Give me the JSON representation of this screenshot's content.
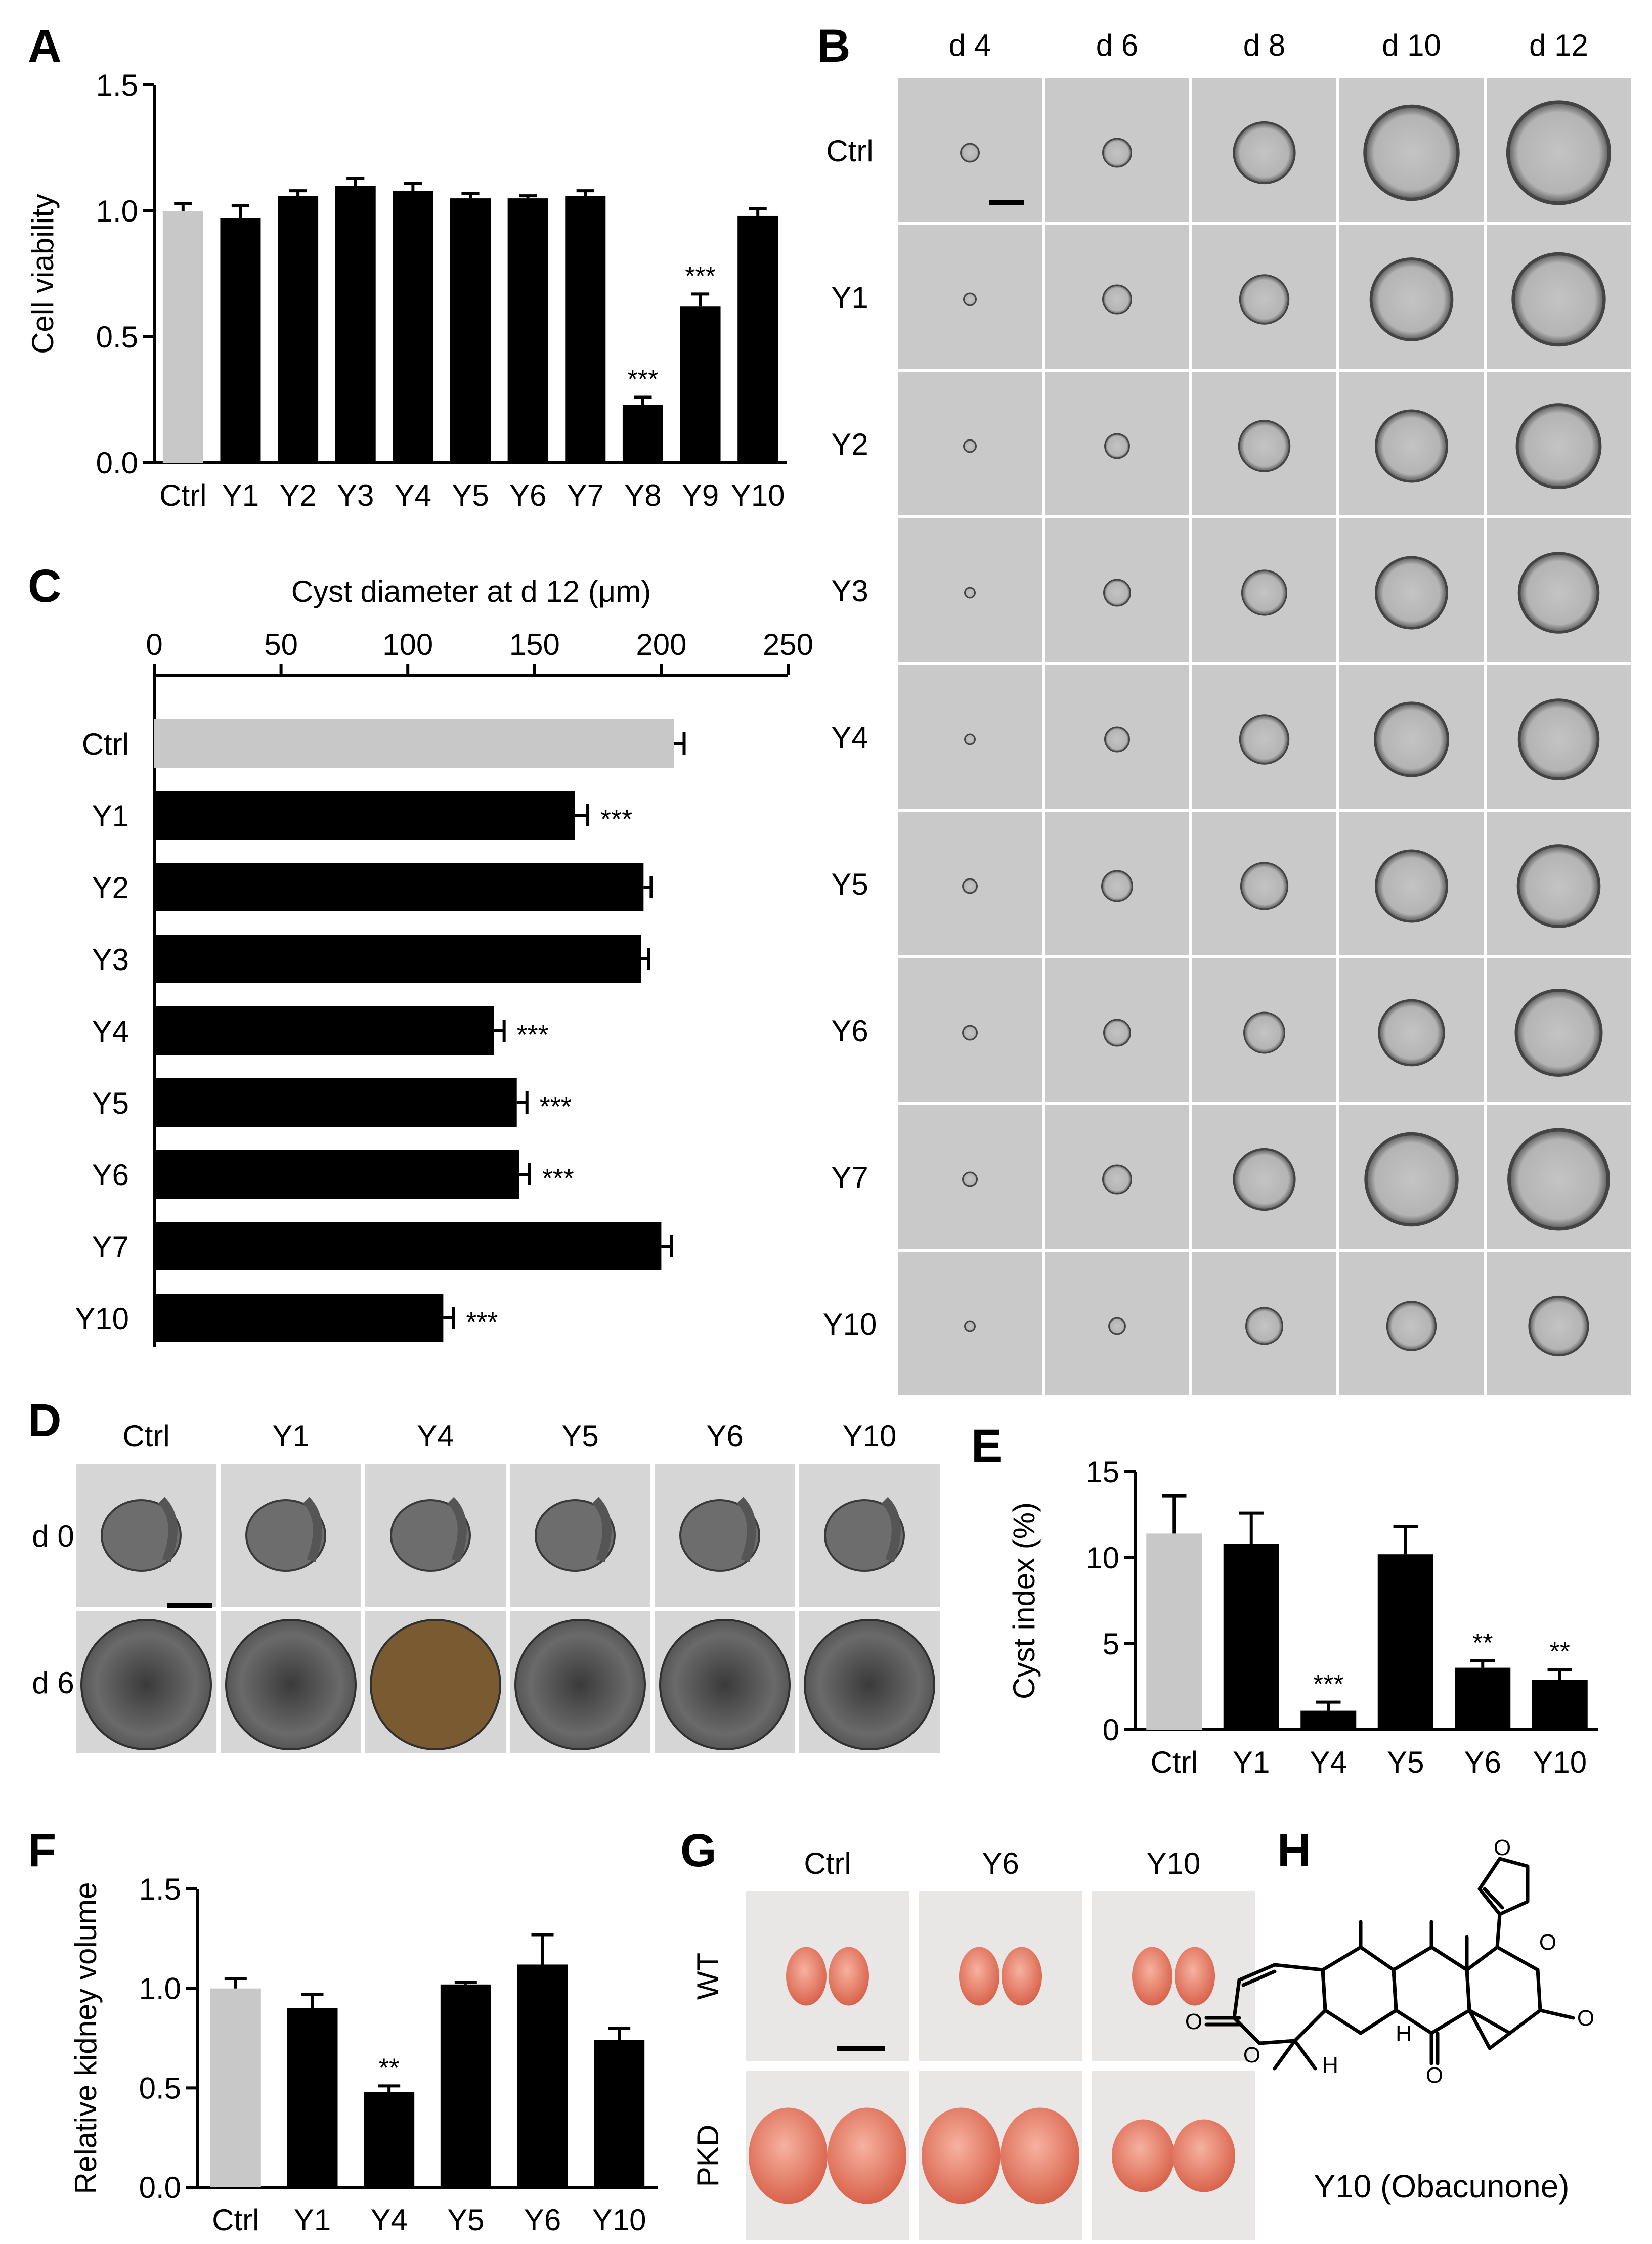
{
  "colors": {
    "ctrl_bar": "#c8c8c8",
    "treated_bar": "#000000",
    "kidney_wt": "#e4745e",
    "kidney_pkd": "#ea8f78",
    "micro_bg": "#c9c9c9",
    "cyst_edge": "#444444"
  },
  "panel_letters": [
    "A",
    "B",
    "C",
    "D",
    "E",
    "F",
    "G",
    "H"
  ],
  "chart_data": [
    {
      "panel": "A",
      "type": "bar",
      "categories": [
        "Ctrl",
        "Y1",
        "Y2",
        "Y3",
        "Y4",
        "Y5",
        "Y6",
        "Y7",
        "Y8",
        "Y9",
        "Y10"
      ],
      "values": [
        1.0,
        0.97,
        1.06,
        1.1,
        1.08,
        1.05,
        1.05,
        1.06,
        0.23,
        0.62,
        0.98
      ],
      "errors": [
        0.03,
        0.05,
        0.02,
        0.03,
        0.03,
        0.02,
        0.01,
        0.02,
        0.03,
        0.05,
        0.03
      ],
      "significance": [
        "",
        "",
        "",
        "",
        "",
        "",
        "",
        "",
        "***",
        "***",
        ""
      ],
      "ylabel": "Cell viability",
      "ylim": [
        0,
        1.5
      ],
      "yticks": [
        "0.0",
        "0.5",
        "1.0",
        "1.5"
      ],
      "ytick_values": [
        0,
        0.5,
        1.0,
        1.5
      ]
    },
    {
      "panel": "C",
      "type": "bar",
      "orientation": "horizontal",
      "categories": [
        "Ctrl",
        "Y1",
        "Y2",
        "Y3",
        "Y4",
        "Y5",
        "Y6",
        "Y7",
        "Y10"
      ],
      "values": [
        205,
        166,
        193,
        192,
        134,
        143,
        144,
        200,
        114
      ],
      "errors": [
        4,
        5,
        3,
        3,
        4,
        4,
        4,
        4,
        4
      ],
      "significance": [
        "",
        "***",
        "",
        "",
        "***",
        "***",
        "***",
        "",
        "***"
      ],
      "xlabel": "Cyst diameter at d 12 (μm)",
      "xlim": [
        0,
        250
      ],
      "xticks": [
        "0",
        "50",
        "100",
        "150",
        "200",
        "250"
      ],
      "xtick_values": [
        0,
        50,
        100,
        150,
        200,
        250
      ]
    },
    {
      "panel": "E",
      "type": "bar",
      "categories": [
        "Ctrl",
        "Y1",
        "Y4",
        "Y5",
        "Y6",
        "Y10"
      ],
      "values": [
        11.4,
        10.8,
        1.1,
        10.2,
        3.6,
        2.9
      ],
      "errors": [
        2.2,
        1.8,
        0.5,
        1.6,
        0.4,
        0.6
      ],
      "significance": [
        "",
        "",
        "***",
        "",
        "**",
        "**"
      ],
      "ylabel": "Cyst index (%)",
      "ylim": [
        0,
        15
      ],
      "yticks": [
        "0",
        "5",
        "10",
        "15"
      ],
      "ytick_values": [
        0,
        5,
        10,
        15
      ]
    },
    {
      "panel": "F",
      "type": "bar",
      "categories": [
        "Ctrl",
        "Y1",
        "Y4",
        "Y5",
        "Y6",
        "Y10"
      ],
      "values": [
        1.0,
        0.9,
        0.48,
        1.02,
        1.12,
        0.74
      ],
      "errors": [
        0.05,
        0.07,
        0.03,
        0.01,
        0.15,
        0.06
      ],
      "significance": [
        "",
        "",
        "**",
        "",
        "",
        ""
      ],
      "ylabel": "Relative kidney volume",
      "ylim": [
        0,
        1.5
      ],
      "yticks": [
        "0.0",
        "0.5",
        "1.0",
        "1.5"
      ],
      "ytick_values": [
        0,
        0.5,
        1.0,
        1.5
      ]
    }
  ],
  "panel_b": {
    "columns": [
      "d 4",
      "d 6",
      "d 8",
      "d 10",
      "d 12"
    ],
    "rows": [
      "Ctrl",
      "Y1",
      "Y2",
      "Y3",
      "Y4",
      "Y5",
      "Y6",
      "Y7",
      "Y10"
    ]
  },
  "panel_d": {
    "columns": [
      "Ctrl",
      "Y1",
      "Y4",
      "Y5",
      "Y6",
      "Y10"
    ],
    "rows": [
      "d 0",
      "d 6"
    ]
  },
  "panel_g": {
    "columns": [
      "Ctrl",
      "Y6",
      "Y10"
    ],
    "rows": [
      "WT",
      "PKD"
    ]
  },
  "panel_h": {
    "caption": "Y10 (Obacunone)",
    "atoms": [
      "O",
      "O",
      "O",
      "O",
      "O",
      "O",
      "H",
      "H"
    ]
  }
}
